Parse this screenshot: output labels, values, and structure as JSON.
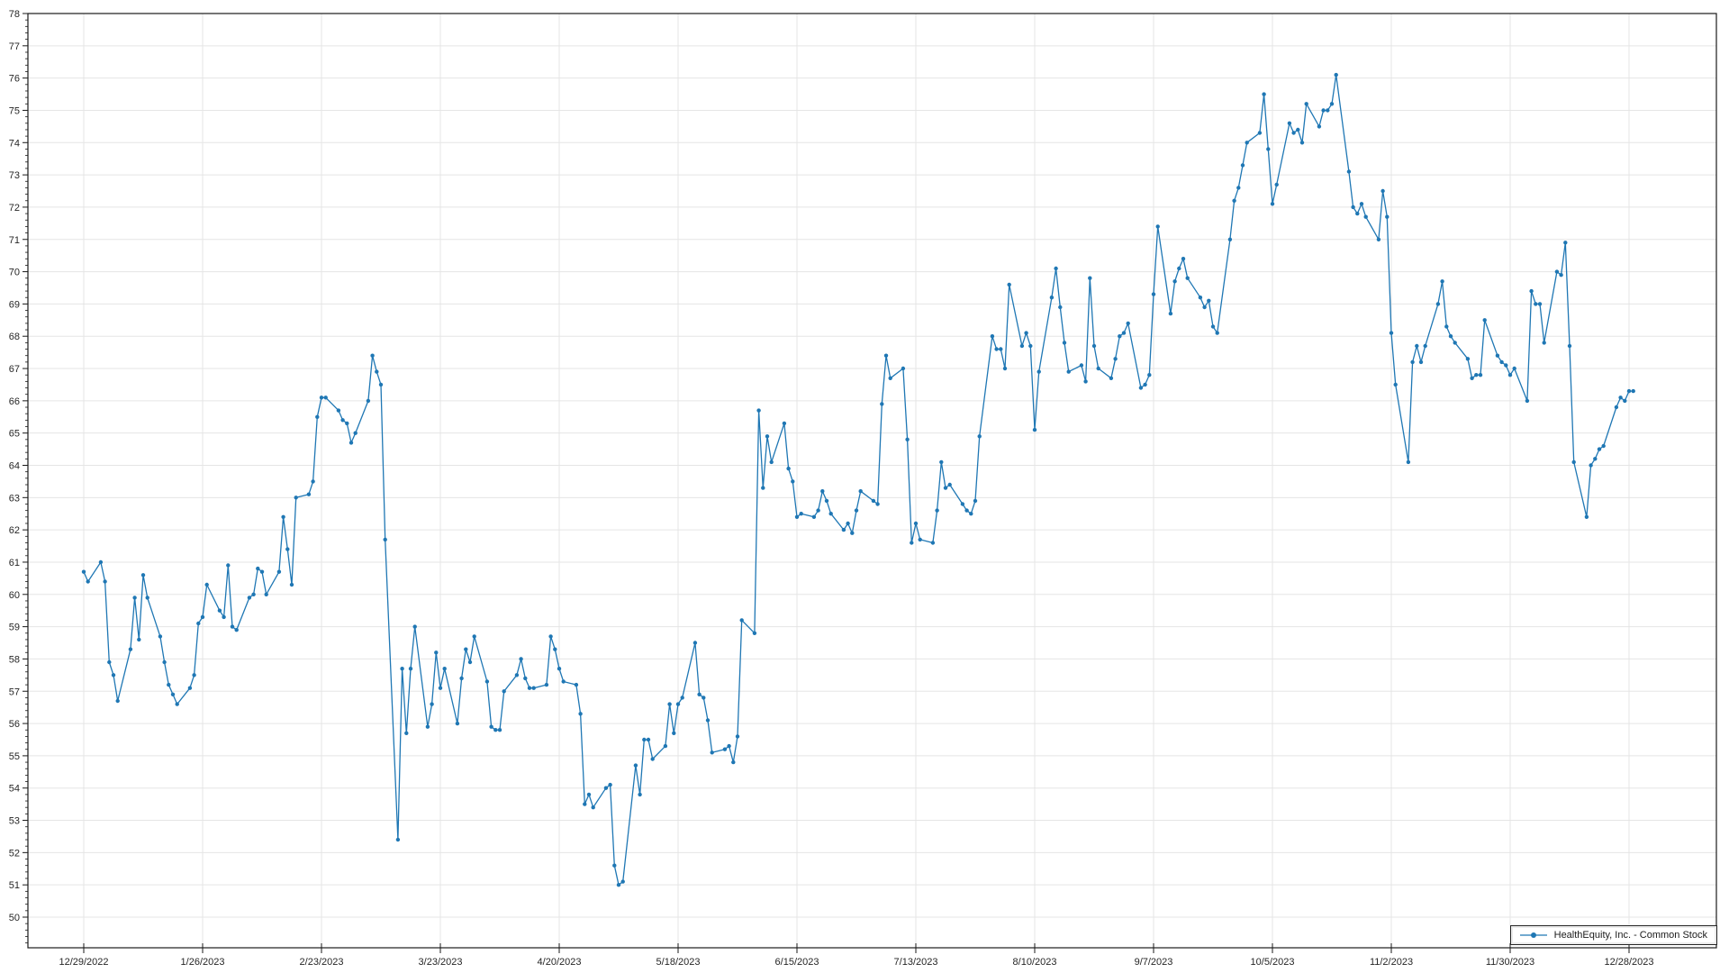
{
  "legend": {
    "label": "HealthEquity, Inc. - Common Stock"
  },
  "chart_data": {
    "type": "line",
    "title": "",
    "xlabel": "",
    "ylabel": "",
    "series_name": "HealthEquity, Inc. - Common Stock",
    "frequency": "daily stock close (weekdays), day offsets from 12/29/2022",
    "start_date": "12/29/2022",
    "ylim": [
      49.05,
      78
    ],
    "y_ticks": [
      50,
      51,
      52,
      53,
      54,
      55,
      56,
      57,
      58,
      59,
      60,
      61,
      62,
      63,
      64,
      65,
      66,
      67,
      68,
      69,
      70,
      71,
      72,
      73,
      74,
      75,
      76,
      77,
      78
    ],
    "x_ticks": {
      "day_offsets": [
        0,
        28,
        56,
        84,
        112,
        140,
        168,
        196,
        224,
        252,
        280,
        308,
        336,
        364
      ],
      "labels": [
        "12/29/2022",
        "1/26/2023",
        "2/23/2023",
        "3/23/2023",
        "4/20/2023",
        "5/18/2023",
        "6/15/2023",
        "7/13/2023",
        "8/10/2023",
        "9/7/2023",
        "10/5/2023",
        "11/2/2023",
        "11/30/2023",
        "12/28/2023"
      ]
    },
    "grid": true,
    "legend_position": "lower right",
    "line_color": "#1f77b4",
    "grid_color": "#e5e5e5",
    "axis_color": "#1a1a1a",
    "tick_label_color": "#262626",
    "points": [
      [
        0,
        60.7
      ],
      [
        1,
        60.4
      ],
      [
        4,
        61.0
      ],
      [
        5,
        60.4
      ],
      [
        6,
        57.9
      ],
      [
        7,
        57.5
      ],
      [
        8,
        56.7
      ],
      [
        11,
        58.3
      ],
      [
        12,
        59.9
      ],
      [
        13,
        58.6
      ],
      [
        14,
        60.6
      ],
      [
        15,
        59.9
      ],
      [
        18,
        58.7
      ],
      [
        19,
        57.9
      ],
      [
        20,
        57.2
      ],
      [
        21,
        56.9
      ],
      [
        22,
        56.6
      ],
      [
        25,
        57.1
      ],
      [
        26,
        57.5
      ],
      [
        27,
        59.1
      ],
      [
        28,
        59.3
      ],
      [
        29,
        60.3
      ],
      [
        32,
        59.5
      ],
      [
        33,
        59.3
      ],
      [
        34,
        60.9
      ],
      [
        35,
        59.0
      ],
      [
        36,
        58.9
      ],
      [
        39,
        59.9
      ],
      [
        40,
        60.0
      ],
      [
        41,
        60.8
      ],
      [
        42,
        60.7
      ],
      [
        43,
        60.0
      ],
      [
        46,
        60.7
      ],
      [
        47,
        62.4
      ],
      [
        48,
        61.4
      ],
      [
        49,
        60.3
      ],
      [
        50,
        63.0
      ],
      [
        53,
        63.1
      ],
      [
        54,
        63.5
      ],
      [
        55,
        65.5
      ],
      [
        56,
        66.1
      ],
      [
        57,
        66.1
      ],
      [
        60,
        65.7
      ],
      [
        61,
        65.4
      ],
      [
        62,
        65.3
      ],
      [
        63,
        64.7
      ],
      [
        64,
        65.0
      ],
      [
        67,
        66.0
      ],
      [
        68,
        67.4
      ],
      [
        69,
        66.9
      ],
      [
        70,
        66.5
      ],
      [
        71,
        61.7
      ],
      [
        74,
        52.4
      ],
      [
        75,
        57.7
      ],
      [
        76,
        55.7
      ],
      [
        77,
        57.7
      ],
      [
        78,
        59.0
      ],
      [
        81,
        55.9
      ],
      [
        82,
        56.6
      ],
      [
        83,
        58.2
      ],
      [
        84,
        57.1
      ],
      [
        85,
        57.7
      ],
      [
        88,
        56.0
      ],
      [
        89,
        57.4
      ],
      [
        90,
        58.3
      ],
      [
        91,
        57.9
      ],
      [
        92,
        58.7
      ],
      [
        95,
        57.3
      ],
      [
        96,
        55.9
      ],
      [
        97,
        55.8
      ],
      [
        98,
        55.8
      ],
      [
        99,
        57.0
      ],
      [
        102,
        57.5
      ],
      [
        103,
        58.0
      ],
      [
        104,
        57.4
      ],
      [
        105,
        57.1
      ],
      [
        106,
        57.1
      ],
      [
        109,
        57.2
      ],
      [
        110,
        58.7
      ],
      [
        111,
        58.3
      ],
      [
        112,
        57.7
      ],
      [
        113,
        57.3
      ],
      [
        116,
        57.2
      ],
      [
        117,
        56.3
      ],
      [
        118,
        53.5
      ],
      [
        119,
        53.8
      ],
      [
        120,
        53.4
      ],
      [
        123,
        54.0
      ],
      [
        124,
        54.1
      ],
      [
        125,
        51.6
      ],
      [
        126,
        51.0
      ],
      [
        127,
        51.1
      ],
      [
        130,
        54.7
      ],
      [
        131,
        53.8
      ],
      [
        132,
        55.5
      ],
      [
        133,
        55.5
      ],
      [
        134,
        54.9
      ],
      [
        137,
        55.3
      ],
      [
        138,
        56.6
      ],
      [
        139,
        55.7
      ],
      [
        140,
        56.6
      ],
      [
        141,
        56.8
      ],
      [
        144,
        58.5
      ],
      [
        145,
        56.9
      ],
      [
        146,
        56.8
      ],
      [
        147,
        56.1
      ],
      [
        148,
        55.1
      ],
      [
        151,
        55.2
      ],
      [
        152,
        55.3
      ],
      [
        153,
        54.8
      ],
      [
        154,
        55.6
      ],
      [
        155,
        59.2
      ],
      [
        158,
        58.8
      ],
      [
        159,
        65.7
      ],
      [
        160,
        63.3
      ],
      [
        161,
        64.9
      ],
      [
        162,
        64.1
      ],
      [
        165,
        65.3
      ],
      [
        166,
        63.9
      ],
      [
        167,
        63.5
      ],
      [
        168,
        62.4
      ],
      [
        169,
        62.5
      ],
      [
        172,
        62.4
      ],
      [
        173,
        62.6
      ],
      [
        174,
        63.2
      ],
      [
        175,
        62.9
      ],
      [
        176,
        62.5
      ],
      [
        179,
        62.0
      ],
      [
        180,
        62.2
      ],
      [
        181,
        61.9
      ],
      [
        182,
        62.6
      ],
      [
        183,
        63.2
      ],
      [
        186,
        62.9
      ],
      [
        187,
        62.8
      ],
      [
        188,
        65.9
      ],
      [
        189,
        67.4
      ],
      [
        190,
        66.7
      ],
      [
        193,
        67.0
      ],
      [
        194,
        64.8
      ],
      [
        195,
        61.6
      ],
      [
        196,
        62.2
      ],
      [
        197,
        61.7
      ],
      [
        200,
        61.6
      ],
      [
        201,
        62.6
      ],
      [
        202,
        64.1
      ],
      [
        203,
        63.3
      ],
      [
        204,
        63.4
      ],
      [
        207,
        62.8
      ],
      [
        208,
        62.6
      ],
      [
        209,
        62.5
      ],
      [
        210,
        62.9
      ],
      [
        211,
        64.9
      ],
      [
        214,
        68.0
      ],
      [
        215,
        67.6
      ],
      [
        216,
        67.6
      ],
      [
        217,
        67.0
      ],
      [
        218,
        69.6
      ],
      [
        221,
        67.7
      ],
      [
        222,
        68.1
      ],
      [
        223,
        67.7
      ],
      [
        224,
        65.1
      ],
      [
        225,
        66.9
      ],
      [
        228,
        69.2
      ],
      [
        229,
        70.1
      ],
      [
        230,
        68.9
      ],
      [
        231,
        67.8
      ],
      [
        232,
        66.9
      ],
      [
        235,
        67.1
      ],
      [
        236,
        66.6
      ],
      [
        237,
        69.8
      ],
      [
        238,
        67.7
      ],
      [
        239,
        67.0
      ],
      [
        242,
        66.7
      ],
      [
        243,
        67.3
      ],
      [
        244,
        68.0
      ],
      [
        245,
        68.1
      ],
      [
        246,
        68.4
      ],
      [
        249,
        66.4
      ],
      [
        250,
        66.5
      ],
      [
        251,
        66.8
      ],
      [
        252,
        69.3
      ],
      [
        253,
        71.4
      ],
      [
        256,
        68.7
      ],
      [
        257,
        69.7
      ],
      [
        258,
        70.1
      ],
      [
        259,
        70.4
      ],
      [
        260,
        69.8
      ],
      [
        263,
        69.2
      ],
      [
        264,
        68.9
      ],
      [
        265,
        69.1
      ],
      [
        266,
        68.3
      ],
      [
        267,
        68.1
      ],
      [
        270,
        71.0
      ],
      [
        271,
        72.2
      ],
      [
        272,
        72.6
      ],
      [
        273,
        73.3
      ],
      [
        274,
        74.0
      ],
      [
        277,
        74.3
      ],
      [
        278,
        75.5
      ],
      [
        279,
        73.8
      ],
      [
        280,
        72.1
      ],
      [
        281,
        72.7
      ],
      [
        284,
        74.6
      ],
      [
        285,
        74.3
      ],
      [
        286,
        74.4
      ],
      [
        287,
        74.0
      ],
      [
        288,
        75.2
      ],
      [
        291,
        74.5
      ],
      [
        292,
        75.0
      ],
      [
        293,
        75.0
      ],
      [
        294,
        75.2
      ],
      [
        295,
        76.1
      ],
      [
        298,
        73.1
      ],
      [
        299,
        72.0
      ],
      [
        300,
        71.8
      ],
      [
        301,
        72.1
      ],
      [
        302,
        71.7
      ],
      [
        305,
        71.0
      ],
      [
        306,
        72.5
      ],
      [
        307,
        71.7
      ],
      [
        308,
        68.1
      ],
      [
        309,
        66.5
      ],
      [
        312,
        64.1
      ],
      [
        313,
        67.2
      ],
      [
        314,
        67.7
      ],
      [
        315,
        67.2
      ],
      [
        316,
        67.7
      ],
      [
        319,
        69.0
      ],
      [
        320,
        69.7
      ],
      [
        321,
        68.3
      ],
      [
        322,
        68.0
      ],
      [
        323,
        67.8
      ],
      [
        326,
        67.3
      ],
      [
        327,
        66.7
      ],
      [
        328,
        66.8
      ],
      [
        329,
        66.8
      ],
      [
        330,
        68.5
      ],
      [
        333,
        67.4
      ],
      [
        334,
        67.2
      ],
      [
        335,
        67.1
      ],
      [
        336,
        66.8
      ],
      [
        337,
        67.0
      ],
      [
        340,
        66.0
      ],
      [
        341,
        69.4
      ],
      [
        342,
        69.0
      ],
      [
        343,
        69.0
      ],
      [
        344,
        67.8
      ],
      [
        347,
        70.0
      ],
      [
        348,
        69.9
      ],
      [
        349,
        70.9
      ],
      [
        350,
        67.7
      ],
      [
        351,
        64.1
      ],
      [
        354,
        62.4
      ],
      [
        355,
        64.0
      ],
      [
        356,
        64.2
      ],
      [
        357,
        64.5
      ],
      [
        358,
        64.6
      ],
      [
        361,
        65.8
      ],
      [
        362,
        66.1
      ],
      [
        363,
        66.0
      ],
      [
        364,
        66.3
      ],
      [
        365,
        66.3
      ]
    ]
  }
}
